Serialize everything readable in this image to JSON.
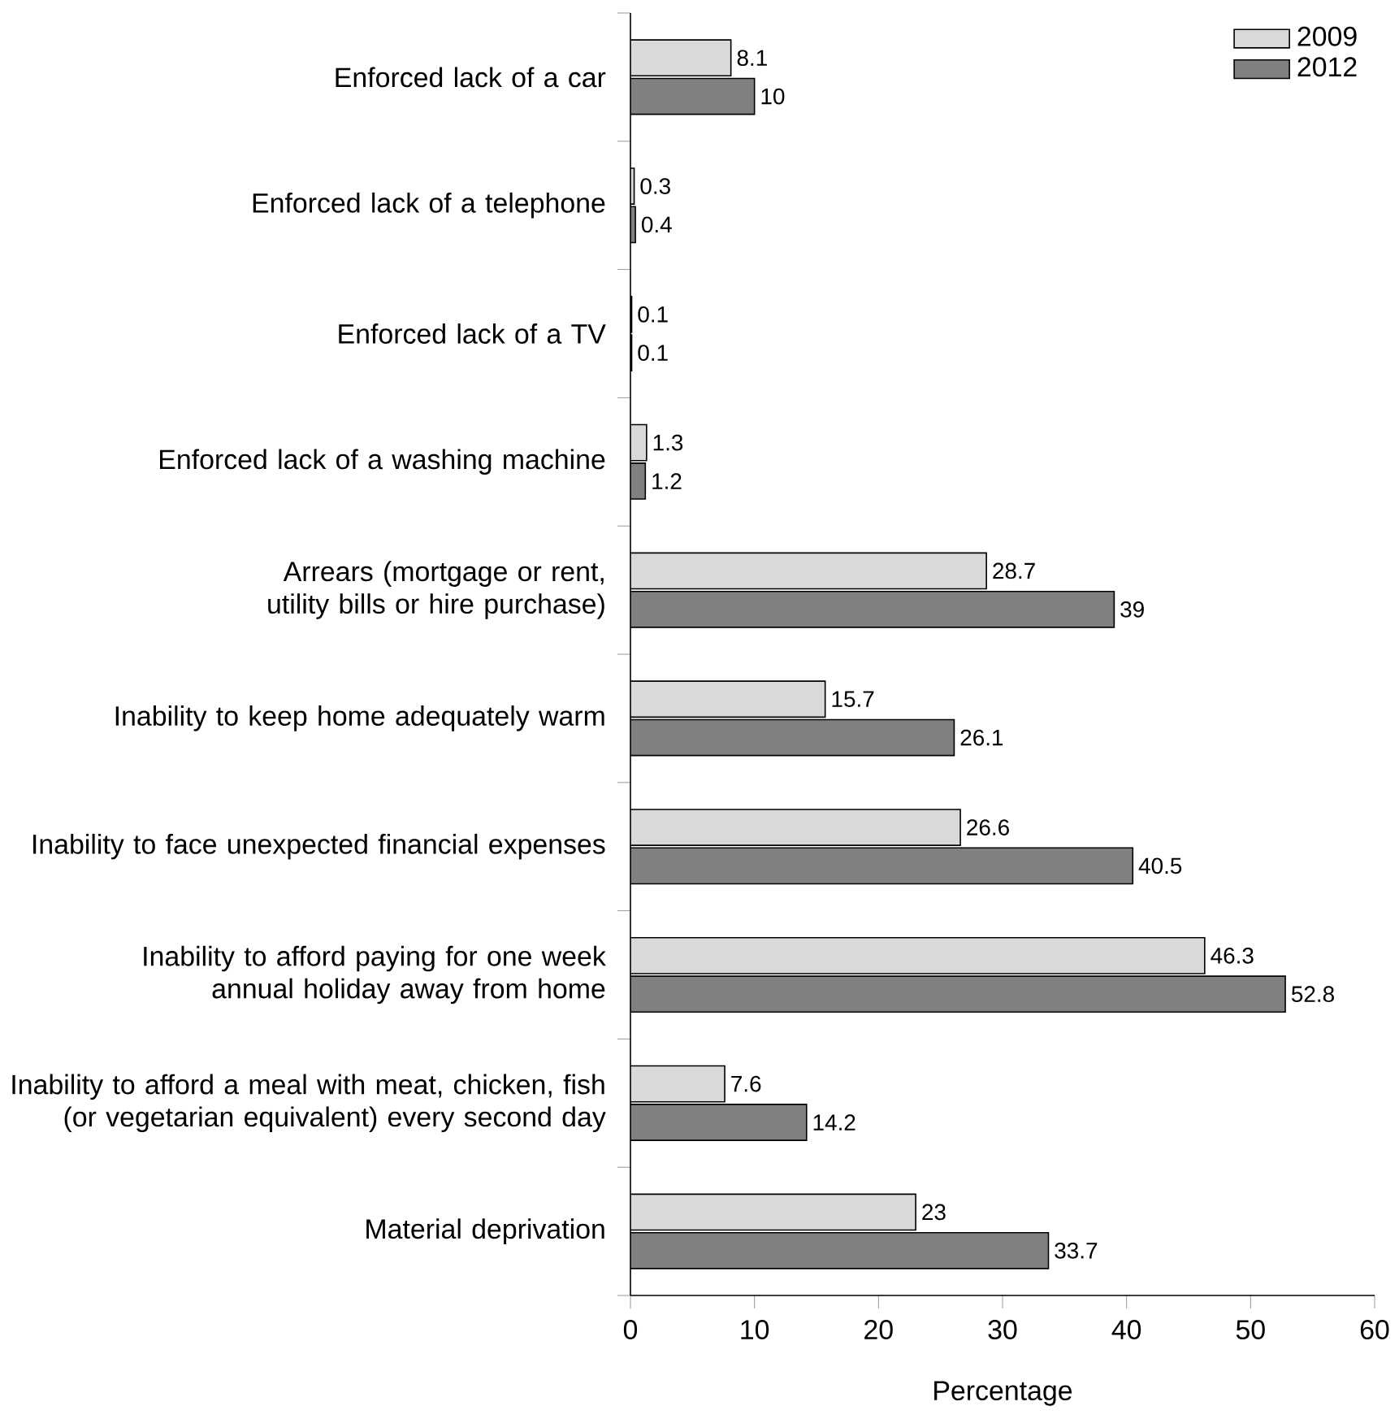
{
  "chart_data": {
    "type": "bar",
    "orientation": "horizontal",
    "xlabel": "Percentage",
    "categories": [
      "Enforced lack of a car",
      "Enforced lack of a telephone",
      "Enforced lack of a TV",
      "Enforced lack of a washing machine",
      "Arrears (mortgage or rent, utility bills or hire purchase)",
      "Inability to keep home adequately warm",
      "Inability to face unexpected financial expenses",
      "Inability to afford paying for one week annual holiday away from home",
      "Inability to afford a meal with meat, chicken, fish (or vegetarian equivalent) every second day",
      "Material deprivation"
    ],
    "series": [
      {
        "name": "2009",
        "color": "#d9d9d9",
        "values": [
          8.1,
          0.3,
          0.1,
          1.3,
          28.7,
          15.7,
          26.6,
          46.3,
          7.6,
          23
        ]
      },
      {
        "name": "2012",
        "color": "#808080",
        "values": [
          10,
          0.4,
          0.1,
          1.2,
          39,
          26.1,
          40.5,
          52.8,
          14.2,
          33.7
        ]
      }
    ],
    "xlim": [
      0,
      60
    ],
    "xticks": [
      0,
      10,
      20,
      30,
      40,
      50,
      60
    ],
    "data_labels": true,
    "legend": "top right"
  }
}
